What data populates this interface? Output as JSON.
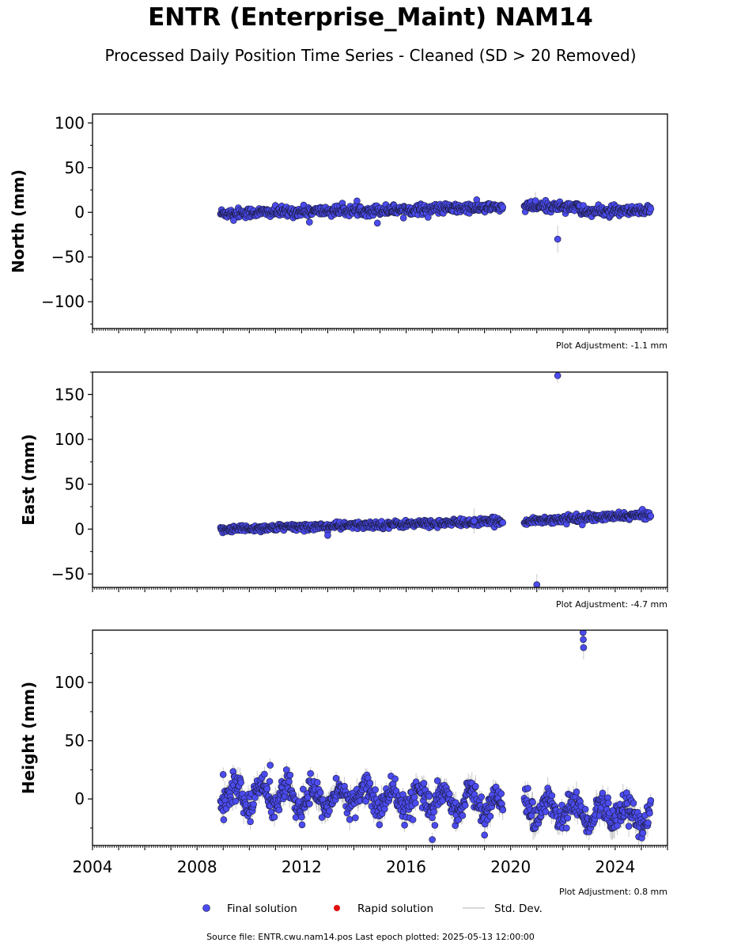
{
  "title": "ENTR (Enterprise_Maint) NAM14",
  "subtitle": "Processed Daily Position Time Series - Cleaned (SD > 20 Removed)",
  "source_line": "Source file: ENTR.cwu.nam14.pos  Last epoch plotted: 2025-05-13 12:00:00",
  "legend": {
    "final": "Final solution",
    "rapid": "Rapid solution",
    "sd": "Std. Dev."
  },
  "colors": {
    "final": "#4b4bef",
    "final_edge": "#1a1a3a",
    "rapid": "#e01010",
    "sd": "#bbbbbb"
  },
  "chart_data": [
    {
      "type": "scatter",
      "ylabel": "North (mm)",
      "adjustment": "Plot Adjustment: -1.1 mm",
      "xlim": [
        2004,
        2026
      ],
      "ylim": [
        -130,
        110
      ],
      "yticks": [
        -100,
        -50,
        0,
        50,
        100
      ],
      "ytick_labels": [
        "−100",
        "−50",
        "0",
        "50",
        "100"
      ],
      "xticks": [
        2004,
        2008,
        2012,
        2016,
        2020,
        2024
      ],
      "xtick_labels": [],
      "trend": [
        {
          "x": 2008.9,
          "y": -1.0
        },
        {
          "x": 2019.7,
          "y": 5.5
        },
        {
          "x": 2020.5,
          "y": 6.0
        },
        {
          "x": 2022.6,
          "y": 7.0
        },
        {
          "x": 2022.65,
          "y": 1.0
        },
        {
          "x": 2025.36,
          "y": 1.0
        }
      ],
      "noise": 2.8,
      "gaps": [
        [
          2019.7,
          2020.5
        ]
      ],
      "outliers": [
        {
          "x": 2021.8,
          "y": -30,
          "sd": 15
        },
        {
          "x": 2020.95,
          "y": 13,
          "sd": 10
        },
        {
          "x": 2014.9,
          "y": -12,
          "sd": 4
        },
        {
          "x": 2012.3,
          "y": -11,
          "sd": 4
        },
        {
          "x": 2009.4,
          "y": -9,
          "sd": 3
        }
      ]
    },
    {
      "type": "scatter",
      "ylabel": "East (mm)",
      "adjustment": "Plot Adjustment: -4.7 mm",
      "xlim": [
        2004,
        2026
      ],
      "ylim": [
        -65,
        175
      ],
      "yticks": [
        -50,
        0,
        50,
        100,
        150
      ],
      "ytick_labels": [
        "−50",
        "0",
        "50",
        "100",
        "150"
      ],
      "xticks": [
        2004,
        2008,
        2012,
        2016,
        2020,
        2024
      ],
      "xtick_labels": [],
      "trend": [
        {
          "x": 2008.9,
          "y": 0.0
        },
        {
          "x": 2019.7,
          "y": 8.5
        },
        {
          "x": 2020.5,
          "y": 9.0
        },
        {
          "x": 2025.36,
          "y": 16.0
        }
      ],
      "noise": 2.0,
      "gaps": [
        [
          2019.7,
          2020.5
        ]
      ],
      "outliers": [
        {
          "x": 2021.8,
          "y": 171,
          "sd": 8
        },
        {
          "x": 2021.0,
          "y": -62,
          "sd": 12
        },
        {
          "x": 2018.6,
          "y": 9,
          "sd": 14
        },
        {
          "x": 2013.0,
          "y": -7,
          "sd": 3
        }
      ]
    },
    {
      "type": "scatter",
      "ylabel": "Height (mm)",
      "adjustment": "Plot Adjustment: 0.8 mm",
      "xlim": [
        2004,
        2026
      ],
      "ylim": [
        -40,
        145
      ],
      "yticks": [
        0,
        50,
        100
      ],
      "ytick_labels": [
        "0",
        "50",
        "100"
      ],
      "xticks": [
        2004,
        2008,
        2012,
        2016,
        2020,
        2024
      ],
      "xtick_labels": [
        "2004",
        "2008",
        "2012",
        "2016",
        "2020",
        "2024"
      ],
      "trend": [
        {
          "x": 2008.9,
          "y": 2.0
        },
        {
          "x": 2016.5,
          "y": 0.0
        },
        {
          "x": 2019.7,
          "y": -4.0
        },
        {
          "x": 2020.5,
          "y": -8.0
        },
        {
          "x": 2025.36,
          "y": -16.0
        }
      ],
      "noise": 5.5,
      "seasonal": 9,
      "gaps": [
        [
          2019.7,
          2020.5
        ]
      ],
      "outliers": [
        {
          "x": 2022.77,
          "y": 143,
          "sd": 6
        },
        {
          "x": 2022.78,
          "y": 137,
          "sd": 6
        },
        {
          "x": 2022.79,
          "y": 130,
          "sd": 10
        },
        {
          "x": 2010.8,
          "y": 29,
          "sd": 6
        },
        {
          "x": 2009.0,
          "y": 21,
          "sd": 6
        },
        {
          "x": 2019.0,
          "y": -31,
          "sd": 6
        },
        {
          "x": 2017.0,
          "y": -35,
          "sd": 6
        }
      ]
    }
  ]
}
